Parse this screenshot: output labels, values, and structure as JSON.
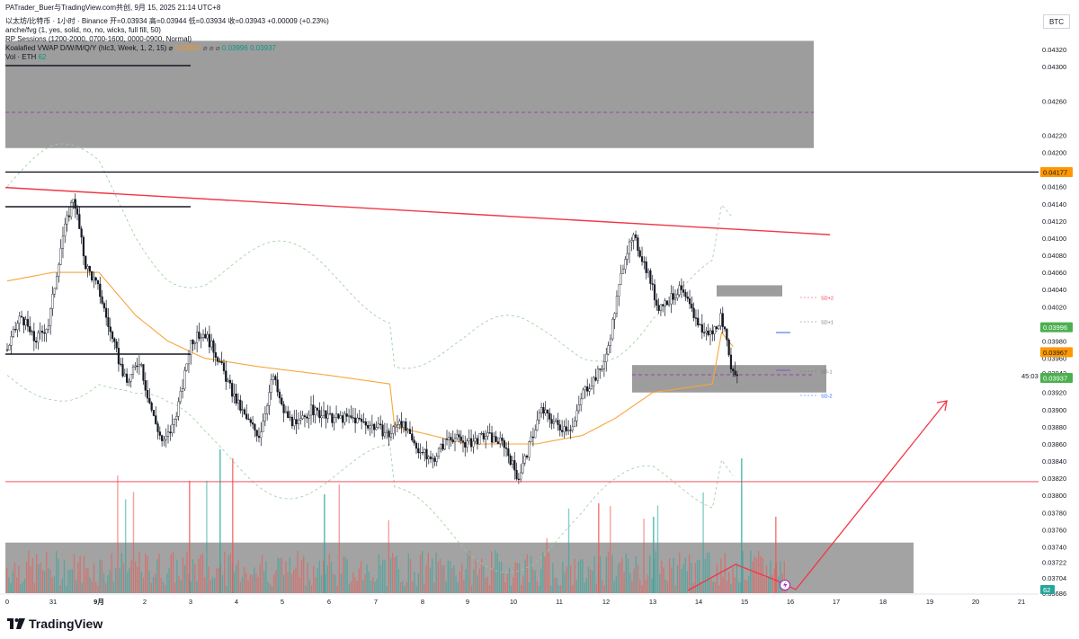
{
  "header": {
    "title_line": "PATrader_Buer与TradingView.com共创,  9月 15, 2025 21:14 UTC+8",
    "symbol_line": "以太坊/比特币 · 1小时 · Binance",
    "ohlc": "开=0.03934  高=0.03944  低=0.03934  收=0.03943  +0.00009 (+0.23%)",
    "ind1": "anche/fvg (1, yes, solid, no, no, wicks, full fill, 50)",
    "ind2": "RP Sessions (1200-2000, 0700-1600, 0000-0900, Normal)",
    "ind3_name": "Koalafied VWAP D/W/M/Q/Y  (hlc3, Week, 1, 2, 15)  ⌀",
    "ind3_v1": "0.03967",
    "ind3_sep": "⌀  ⌀  ⌀",
    "ind3_v2": "0.03996",
    "ind3_v3": "0.03937",
    "vol_name": "Vol · ETH",
    "vol_val": "62"
  },
  "symbol_label": "BTC",
  "brand": "TradingView",
  "chart_data": {
    "type": "candlestick",
    "y_axis": {
      "ticks": [
        "0.04320",
        "0.04300",
        "0.04260",
        "0.04220",
        "0.04200",
        "0.04160",
        "0.04140",
        "0.04120",
        "0.04100",
        "0.04080",
        "0.04060",
        "0.04040",
        "0.04020",
        "0.03980",
        "0.03960",
        "0.03943",
        "0.03920",
        "0.03900",
        "0.03880",
        "0.03860",
        "0.03840",
        "0.03820",
        "0.03800",
        "0.03780",
        "0.03760",
        "0.03740",
        "0.03722",
        "0.03704",
        "0.03686"
      ],
      "range": [
        0.03686,
        0.0432
      ]
    },
    "x_axis": {
      "ticks": [
        "0",
        "31",
        "9月",
        "2",
        "3",
        "4",
        "5",
        "6",
        "7",
        "8",
        "9",
        "10",
        "11",
        "12",
        "13",
        "14",
        "15",
        "16",
        "17",
        "18",
        "19",
        "20",
        "21"
      ]
    },
    "price_labels": [
      {
        "value": "0.04177",
        "color": "#ff9800",
        "text_color": "#131722"
      },
      {
        "value": "0.03996",
        "color": "#4caf50",
        "text_color": "#ffffff"
      },
      {
        "value": "0.03967",
        "color": "#ff9800",
        "text_color": "#131722"
      },
      {
        "value": "0.03937",
        "color": "#4caf50",
        "text_color": "#ffffff"
      }
    ],
    "volume_label": "62",
    "annotations": [
      "SD+2",
      "SD+1",
      "SD-1",
      "SD-2",
      "45:03"
    ],
    "series_note": "ETH/BTC hourly price, about 0.03800 to 0.04150; Koalafied VWAP (orange) with dashed standard-deviation bands; volume histogram at the bottom",
    "price_path": [
      [
        0,
        0.0397
      ],
      [
        0.3,
        0.0401
      ],
      [
        0.6,
        0.0398
      ],
      [
        0.9,
        0.04
      ],
      [
        1.2,
        0.041
      ],
      [
        1.45,
        0.0415
      ],
      [
        1.7,
        0.0407
      ],
      [
        2.0,
        0.0404
      ],
      [
        2.3,
        0.0398
      ],
      [
        2.6,
        0.0393
      ],
      [
        2.9,
        0.0396
      ],
      [
        3.0,
        0.0393
      ],
      [
        3.2,
        0.0389
      ],
      [
        3.4,
        0.0386
      ],
      [
        3.6,
        0.0388
      ],
      [
        3.8,
        0.0392
      ],
      [
        4.0,
        0.0398
      ],
      [
        4.3,
        0.0399
      ],
      [
        4.6,
        0.0396
      ],
      [
        4.9,
        0.0392
      ],
      [
        5.2,
        0.0389
      ],
      [
        5.5,
        0.0387
      ],
      [
        5.8,
        0.0394
      ],
      [
        6.0,
        0.039
      ],
      [
        6.3,
        0.0388
      ],
      [
        6.6,
        0.039
      ],
      [
        7.0,
        0.0389
      ],
      [
        7.5,
        0.0389
      ],
      [
        8.0,
        0.0388
      ],
      [
        8.3,
        0.0387
      ],
      [
        8.5,
        0.0389
      ],
      [
        8.8,
        0.0386
      ],
      [
        9.2,
        0.0384
      ],
      [
        9.6,
        0.0387
      ],
      [
        10.0,
        0.0386
      ],
      [
        10.4,
        0.0387
      ],
      [
        10.8,
        0.0386
      ],
      [
        11.1,
        0.0382
      ],
      [
        11.3,
        0.0385
      ],
      [
        11.6,
        0.039
      ],
      [
        12.0,
        0.0388
      ],
      [
        12.3,
        0.0388
      ],
      [
        12.5,
        0.0392
      ],
      [
        12.8,
        0.0394
      ],
      [
        13.0,
        0.0396
      ],
      [
        13.2,
        0.0402
      ],
      [
        13.4,
        0.0408
      ],
      [
        13.6,
        0.041
      ],
      [
        13.9,
        0.0406
      ],
      [
        14.1,
        0.0402
      ],
      [
        14.4,
        0.0403
      ],
      [
        14.6,
        0.0404
      ],
      [
        14.9,
        0.0401
      ],
      [
        15.1,
        0.0399
      ],
      [
        15.3,
        0.0399
      ],
      [
        15.5,
        0.0401
      ],
      [
        15.7,
        0.0395
      ],
      [
        15.85,
        0.0394
      ]
    ],
    "vwap_path": [
      [
        0,
        0.0405
      ],
      [
        1,
        0.0406
      ],
      [
        2,
        0.0406
      ],
      [
        2.8,
        0.0401
      ],
      [
        3.5,
        0.0398
      ],
      [
        4.3,
        0.0396
      ],
      [
        5.5,
        0.0395
      ],
      [
        7.0,
        0.0394
      ],
      [
        8.3,
        0.0393
      ],
      [
        8.4,
        0.0388
      ],
      [
        10.0,
        0.0386
      ],
      [
        11.5,
        0.0386
      ],
      [
        12.5,
        0.0387
      ],
      [
        13.2,
        0.0389
      ],
      [
        14.0,
        0.0392
      ],
      [
        15.3,
        0.0393
      ],
      [
        15.5,
        0.0399
      ],
      [
        15.8,
        0.0397
      ]
    ],
    "lines": [
      {
        "name": "downtrend-line",
        "color": "#f23645",
        "from": [
          0,
          0.04159
        ],
        "to": [
          17.0,
          0.04104
        ]
      },
      {
        "name": "black-line-1",
        "color": "#131722",
        "value": 0.04177
      },
      {
        "name": "red-support-line",
        "color": "#f23645",
        "value": 0.03816
      }
    ],
    "zones": [
      {
        "name": "upper-fvg-zone",
        "top": 0.0433,
        "bottom": 0.04205
      },
      {
        "name": "resistance-zone",
        "top": 0.04045,
        "bottom": 0.04032
      },
      {
        "name": "support-zone",
        "top": 0.03952,
        "bottom": 0.0392
      },
      {
        "name": "volume-zone",
        "top": 0.03745,
        "bottom": 0.03686
      }
    ]
  }
}
